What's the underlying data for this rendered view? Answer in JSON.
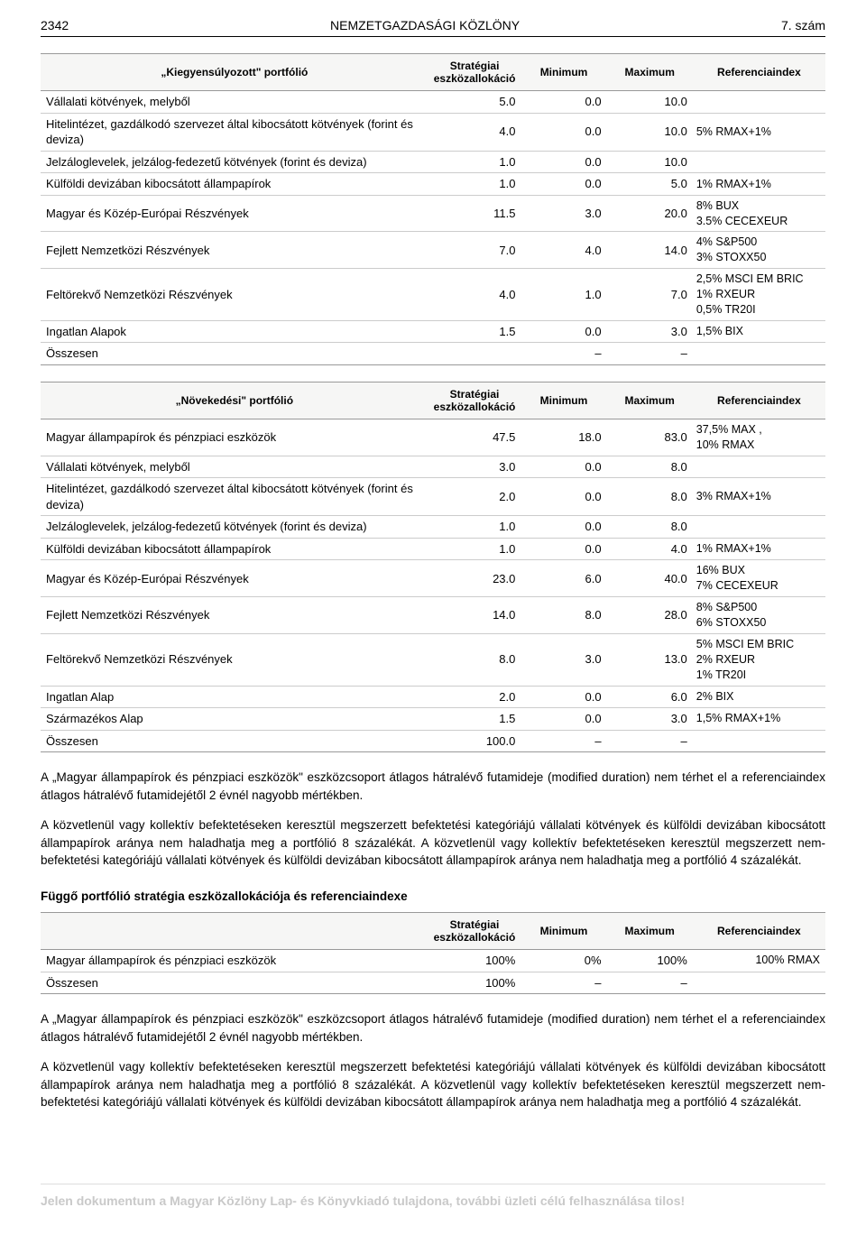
{
  "header": {
    "page_number": "2342",
    "title": "NEMZETGAZDASÁGI KÖZLÖNY",
    "issue": "7. szám"
  },
  "table1": {
    "caption": "„Kiegyensúlyozott\" portfólió",
    "columns": [
      "Stratégiai eszközallokáció",
      "Minimum",
      "Maximum",
      "Referenciaindex"
    ],
    "rows": [
      {
        "label": "Vállalati kötvények, melyből",
        "alloc": "5.0",
        "min": "0.0",
        "max": "10.0",
        "ref": ""
      },
      {
        "label": "Hitelintézet, gazdálkodó szervezet által kibocsátott kötvények (forint és deviza)",
        "alloc": "4.0",
        "min": "0.0",
        "max": "10.0",
        "ref": "5% RMAX+1%"
      },
      {
        "label": "Jelzáloglevelek, jelzálog-fedezetű kötvények (forint és deviza)",
        "alloc": "1.0",
        "min": "0.0",
        "max": "10.0",
        "ref": ""
      },
      {
        "label": "Külföldi devizában kibocsátott állampapírok",
        "alloc": "1.0",
        "min": "0.0",
        "max": "5.0",
        "ref": "1% RMAX+1%"
      },
      {
        "label": "Magyar és Közép-Európai Részvények",
        "alloc": "11.5",
        "min": "3.0",
        "max": "20.0",
        "ref": "8% BUX\n3.5% CECEXEUR"
      },
      {
        "label": "Fejlett Nemzetközi Részvények",
        "alloc": "7.0",
        "min": "4.0",
        "max": "14.0",
        "ref": "4% S&P500\n3% STOXX50"
      },
      {
        "label": "Feltörekvő Nemzetközi Részvények",
        "alloc": "4.0",
        "min": "1.0",
        "max": "7.0",
        "ref": "2,5% MSCI EM BRIC\n1% RXEUR\n0,5% TR20I"
      },
      {
        "label": "Ingatlan Alapok",
        "alloc": "1.5",
        "min": "0.0",
        "max": "3.0",
        "ref": "1,5% BIX"
      },
      {
        "label": "Összesen",
        "alloc": "",
        "min": "–",
        "max": "–",
        "ref": ""
      }
    ]
  },
  "table2": {
    "caption": "„Növekedési\" portfólió",
    "columns": [
      "Stratégiai eszközallokáció",
      "Minimum",
      "Maximum",
      "Referenciaindex"
    ],
    "rows": [
      {
        "label": "Magyar állampapírok és pénzpiaci eszközök",
        "alloc": "47.5",
        "min": "18.0",
        "max": "83.0",
        "ref": "37,5% MAX ,\n10% RMAX"
      },
      {
        "label": "Vállalati kötvények, melyből",
        "alloc": "3.0",
        "min": "0.0",
        "max": "8.0",
        "ref": ""
      },
      {
        "label": "Hitelintézet, gazdálkodó szervezet által kibocsátott kötvények (forint és deviza)",
        "alloc": "2.0",
        "min": "0.0",
        "max": "8.0",
        "ref": "3% RMAX+1%"
      },
      {
        "label": "Jelzáloglevelek, jelzálog-fedezetű kötvények (forint és deviza)",
        "alloc": "1.0",
        "min": "0.0",
        "max": "8.0",
        "ref": ""
      },
      {
        "label": "Külföldi devizában kibocsátott állampapírok",
        "alloc": "1.0",
        "min": "0.0",
        "max": "4.0",
        "ref": "1% RMAX+1%"
      },
      {
        "label": "Magyar és Közép-Európai Részvények",
        "alloc": "23.0",
        "min": "6.0",
        "max": "40.0",
        "ref": "16% BUX\n7% CECEXEUR"
      },
      {
        "label": "Fejlett Nemzetközi Részvények",
        "alloc": "14.0",
        "min": "8.0",
        "max": "28.0",
        "ref": "8% S&P500\n6% STOXX50"
      },
      {
        "label": "Feltörekvő Nemzetközi Részvények",
        "alloc": "8.0",
        "min": "3.0",
        "max": "13.0",
        "ref": "5% MSCI EM BRIC\n2% RXEUR\n1% TR20I"
      },
      {
        "label": "Ingatlan Alap",
        "alloc": "2.0",
        "min": "0.0",
        "max": "6.0",
        "ref": "2% BIX"
      },
      {
        "label": "Származékos Alap",
        "alloc": "1.5",
        "min": "0.0",
        "max": "3.0",
        "ref": "1,5% RMAX+1%"
      },
      {
        "label": "Összesen",
        "alloc": "100.0",
        "min": "–",
        "max": "–",
        "ref": ""
      }
    ]
  },
  "paragraphs": {
    "p1": "A „Magyar állampapírok és pénzpiaci eszközök\" eszközcsoport átlagos hátralévő futamideje (modified duration) nem térhet el a referenciaindex átlagos hátralévő futamidejétől 2 évnél nagyobb mértékben.",
    "p2": "A közvetlenül vagy kollektív befektetéseken keresztül megszerzett befektetési kategóriájú vállalati kötvények és külföldi devizában kibocsátott állampapírok aránya nem haladhatja meg a portfólió 8 százalékát. A közvetlenül vagy kollektív befektetéseken keresztül megszerzett nem-befektetési kategóriájú vállalati kötvények és  külföldi devizában kibocsátott állampapírok aránya nem haladhatja meg a portfólió 4 százalékát.",
    "section_title": "Függő portfólió stratégia eszközallokációja és referenciaindexe",
    "p3": "A „Magyar állampapírok és pénzpiaci eszközök\" eszközcsoport átlagos hátralévő futamideje (modified duration) nem térhet el a referenciaindex átlagos hátralévő futamidejétől 2 évnél nagyobb mértékben.",
    "p4": "A közvetlenül vagy kollektív befektetéseken keresztül megszerzett befektetési kategóriájú vállalati kötvények és külföldi devizában kibocsátott állampapírok aránya nem haladhatja meg a portfólió 8 százalékát. A közvetlenül vagy kollektív befektetéseken keresztül megszerzett nem-befektetési kategóriájú vállalati kötvények és külföldi devizában kibocsátott állampapírok aránya nem haladhatja meg a portfólió 4 százalékát."
  },
  "table3": {
    "columns": [
      "Stratégiai eszközallokáció",
      "Minimum",
      "Maximum",
      "Referenciaindex"
    ],
    "rows": [
      {
        "label": "Magyar állampapírok és pénzpiaci eszközök",
        "alloc": "100%",
        "min": "0%",
        "max": "100%",
        "ref": "100% RMAX"
      },
      {
        "label": "Összesen",
        "alloc": "100%",
        "min": "–",
        "max": "–",
        "ref": ""
      }
    ]
  },
  "footer": {
    "text": "Jelen dokumentum a Magyar Közlöny Lap- és Könyvkiadó tulajdona, további üzleti célú felhasználása tilos!"
  }
}
